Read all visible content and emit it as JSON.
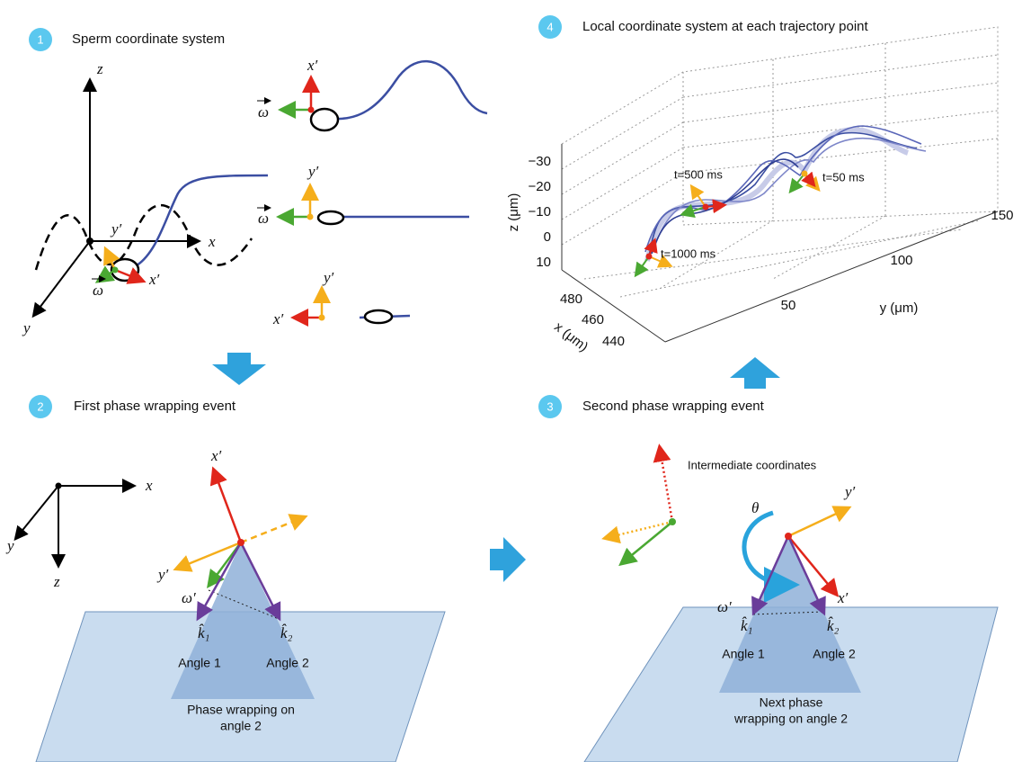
{
  "panels": [
    {
      "number": "1",
      "title": "Sperm coordinate system",
      "labels": [
        "z",
        "x",
        "y",
        "y′",
        "x′",
        "ω",
        "x′",
        "ω",
        "y′",
        "ω",
        "y′",
        "x′"
      ]
    },
    {
      "number": "2",
      "title": "First phase wrapping event",
      "labels": [
        "x",
        "y",
        "z",
        "x′",
        "y′",
        "ω′",
        "k̂₁",
        "k̂₂"
      ],
      "angles": [
        "Angle 1",
        "Angle 2"
      ],
      "caption": [
        "Phase wrapping on",
        "angle 2"
      ]
    },
    {
      "number": "3",
      "title": "Second phase wrapping event",
      "note": "Intermediate coordinates",
      "labels": [
        "θ",
        "y′",
        "ω′",
        "x′",
        "k̂₁",
        "k̂₂"
      ],
      "angles": [
        "Angle 1",
        "Angle 2"
      ],
      "caption": [
        "Next phase",
        "wrapping on angle 2"
      ]
    },
    {
      "number": "4",
      "title": "Local coordinate system at each trajectory point",
      "axes": {
        "z_label": "z (μm)",
        "z_ticks": [
          "−30",
          "−20",
          "−10",
          "0",
          "10"
        ],
        "x_label": "x (μm)",
        "x_ticks": [
          "480",
          "460",
          "440"
        ],
        "y_label": "y (μm)",
        "y_ticks": [
          "50",
          "100",
          "150"
        ]
      },
      "annotations": [
        "t=500 ms",
        "t=50 ms",
        "t=1000 ms"
      ]
    }
  ]
}
